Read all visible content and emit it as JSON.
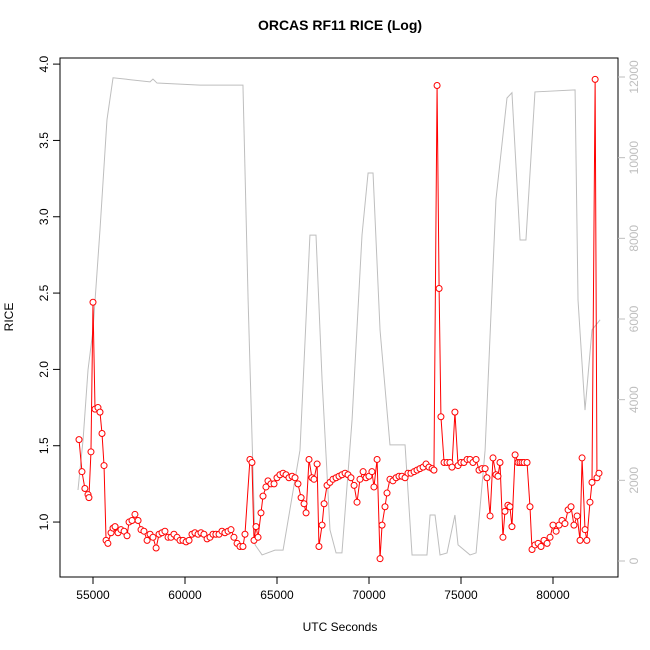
{
  "chart_data": {
    "type": "line",
    "title": "ORCAS RF11 RICE (Log)",
    "xlabel": "UTC Seconds",
    "ylabel": "RICE",
    "xlim": [
      53207,
      83533
    ],
    "ylim": [
      0.64,
      4.04
    ],
    "y2lim": [
      -397,
      12471
    ],
    "xticks": [
      55000,
      60000,
      65000,
      70000,
      75000,
      80000
    ],
    "yticks": [
      {
        "value": 1,
        "label": "1.0"
      },
      {
        "value": 1.5,
        "label": "1.5"
      },
      {
        "value": 2,
        "label": "2.0"
      },
      {
        "value": 2.5,
        "label": "2.5"
      },
      {
        "value": 3,
        "label": "3.0"
      },
      {
        "value": 3.5,
        "label": "3.5"
      },
      {
        "value": 4,
        "label": "4.0"
      }
    ],
    "y2ticks": [
      0,
      2000,
      4000,
      6000,
      8000,
      10000,
      12000
    ],
    "series": [
      {
        "color": "#ff0000",
        "marker": "circle",
        "x": [
          54240,
          54400,
          54560,
          54730,
          54780,
          54890,
          55000,
          55110,
          55270,
          55380,
          55490,
          55600,
          55710,
          55810,
          55980,
          56090,
          56200,
          56360,
          56520,
          56690,
          56850,
          56960,
          57120,
          57280,
          57450,
          57610,
          57770,
          57940,
          58100,
          58260,
          58430,
          58590,
          58750,
          58910,
          59080,
          59240,
          59400,
          59570,
          59730,
          59890,
          60060,
          60220,
          60380,
          60540,
          60710,
          60870,
          61030,
          61200,
          61360,
          61520,
          61680,
          61850,
          62010,
          62170,
          62340,
          62500,
          62660,
          62830,
          62990,
          63150,
          63260,
          63530,
          63640,
          63750,
          63860,
          63970,
          64130,
          64240,
          64400,
          64510,
          64670,
          64840,
          65000,
          65160,
          65330,
          65490,
          65650,
          65820,
          65980,
          66140,
          66310,
          66470,
          66580,
          66740,
          66900,
          67010,
          67180,
          67280,
          67450,
          67560,
          67720,
          67880,
          68040,
          68210,
          68370,
          68530,
          68700,
          68860,
          69020,
          69190,
          69350,
          69510,
          69680,
          69840,
          70000,
          70160,
          70270,
          70440,
          70600,
          70710,
          70870,
          70980,
          71140,
          71300,
          71470,
          71630,
          71790,
          71960,
          72120,
          72280,
          72450,
          72610,
          72770,
          72940,
          73100,
          73260,
          73430,
          73530,
          73700,
          73810,
          73910,
          74080,
          74240,
          74400,
          74510,
          74670,
          74840,
          75000,
          75160,
          75330,
          75490,
          75650,
          75820,
          75980,
          76140,
          76310,
          76410,
          76580,
          76740,
          76900,
          77010,
          77120,
          77280,
          77390,
          77550,
          77660,
          77770,
          77940,
          78100,
          78210,
          78320,
          78430,
          78590,
          78750,
          78860,
          79020,
          79190,
          79350,
          79510,
          79680,
          79840,
          80000,
          80170,
          80330,
          80490,
          80650,
          80820,
          80980,
          81140,
          81310,
          81470,
          81580,
          81740,
          81840,
          82010,
          82120,
          82290,
          82390,
          82500
        ],
        "values": [
          1.54,
          1.33,
          1.22,
          1.18,
          1.16,
          1.46,
          2.44,
          1.74,
          1.75,
          1.72,
          1.58,
          1.37,
          0.88,
          0.86,
          0.93,
          0.96,
          0.97,
          0.93,
          0.95,
          0.94,
          0.91,
          1.0,
          1.01,
          1.05,
          1.01,
          0.95,
          0.94,
          0.88,
          0.92,
          0.9,
          0.83,
          0.92,
          0.93,
          0.94,
          0.9,
          0.9,
          0.92,
          0.9,
          0.88,
          0.88,
          0.87,
          0.88,
          0.92,
          0.93,
          0.92,
          0.93,
          0.92,
          0.89,
          0.9,
          0.92,
          0.92,
          0.92,
          0.94,
          0.93,
          0.94,
          0.95,
          0.9,
          0.86,
          0.84,
          0.84,
          0.92,
          1.41,
          1.39,
          0.88,
          0.97,
          0.9,
          1.06,
          1.17,
          1.23,
          1.27,
          1.25,
          1.25,
          1.29,
          1.31,
          1.32,
          1.31,
          1.29,
          1.3,
          1.29,
          1.25,
          1.16,
          1.12,
          1.06,
          1.41,
          1.29,
          1.28,
          1.38,
          0.84,
          0.98,
          1.12,
          1.24,
          1.26,
          1.28,
          1.29,
          1.3,
          1.31,
          1.32,
          1.31,
          1.29,
          1.24,
          1.13,
          1.28,
          1.33,
          1.29,
          1.3,
          1.33,
          1.23,
          1.41,
          0.76,
          0.98,
          1.1,
          1.19,
          1.28,
          1.27,
          1.29,
          1.3,
          1.3,
          1.29,
          1.32,
          1.32,
          1.33,
          1.34,
          1.35,
          1.36,
          1.38,
          1.36,
          1.35,
          1.34,
          3.86,
          2.53,
          1.69,
          1.39,
          1.39,
          1.39,
          1.36,
          1.72,
          1.37,
          1.39,
          1.39,
          1.41,
          1.41,
          1.39,
          1.41,
          1.34,
          1.35,
          1.35,
          1.29,
          1.04,
          1.42,
          1.31,
          1.3,
          1.39,
          0.9,
          1.07,
          1.11,
          1.1,
          0.97,
          1.44,
          1.39,
          1.39,
          1.39,
          1.39,
          1.39,
          1.1,
          0.82,
          0.85,
          0.86,
          0.84,
          0.88,
          0.86,
          0.9,
          0.98,
          0.94,
          0.98,
          1.01,
          0.99,
          1.08,
          1.1,
          0.98,
          1.04,
          0.88,
          1.42,
          0.95,
          0.88,
          1.13,
          1.26,
          3.9,
          1.29,
          1.32
        ]
      },
      {
        "color": "#bebebe",
        "axis": "y2",
        "x": [
          54185,
          54460,
          54730,
          55000,
          55380,
          55760,
          56090,
          58100,
          58260,
          58480,
          60820,
          63150,
          63430,
          63810,
          64190,
          64890,
          65330,
          66250,
          66790,
          67120,
          67450,
          67880,
          68210,
          68530,
          69080,
          69620,
          69950,
          70220,
          70600,
          71140,
          71580,
          71960,
          72340,
          73150,
          73320,
          73590,
          73860,
          74240,
          74670,
          74840,
          75490,
          75820,
          76310,
          76900,
          77500,
          77770,
          78210,
          78530,
          79020,
          81200,
          81360,
          81740,
          82120,
          82560
        ],
        "values": [
          1760,
          3000,
          4740,
          5730,
          8210,
          10940,
          11980,
          11880,
          11950,
          11850,
          11800,
          11800,
          6470,
          400,
          150,
          270,
          270,
          2750,
          8080,
          8080,
          4490,
          770,
          200,
          200,
          3500,
          8080,
          9620,
          9620,
          5730,
          2880,
          2880,
          2880,
          150,
          150,
          1140,
          1140,
          150,
          200,
          1140,
          400,
          150,
          200,
          2750,
          8960,
          11480,
          11610,
          7960,
          7960,
          11630,
          11680,
          6470,
          3740,
          5730,
          5980
        ]
      }
    ]
  }
}
